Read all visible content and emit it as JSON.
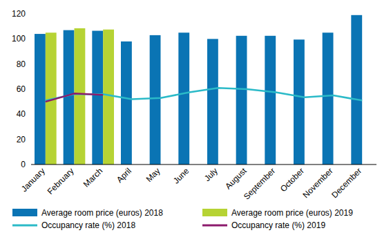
{
  "chart_data": {
    "type": "bar",
    "categories": [
      "January",
      "February",
      "March",
      "April",
      "May",
      "June",
      "July",
      "August",
      "September",
      "October",
      "November",
      "December"
    ],
    "series": [
      {
        "name": "Average room price (euros) 2018",
        "type": "bar",
        "color": "#0a74b4",
        "values": [
          104,
          107,
          106.5,
          98,
          103,
          105,
          100,
          102.5,
          102.5,
          99.5,
          105,
          119
        ]
      },
      {
        "name": "Average room price (euros) 2019",
        "type": "bar",
        "color": "#b6d334",
        "values": [
          105,
          108.5,
          107.5,
          null,
          null,
          null,
          null,
          null,
          null,
          null,
          null,
          null
        ]
      },
      {
        "name": "Occupancy rate (%) 2018",
        "type": "line",
        "color": "#2bbac8",
        "values": [
          51,
          56,
          56,
          52,
          53,
          57.5,
          61,
          60,
          57.5,
          53.5,
          55,
          51
        ]
      },
      {
        "name": "Occupancy rate (%) 2019",
        "type": "line",
        "color": "#8c1a6c",
        "values": [
          50,
          56.5,
          55.5,
          null,
          null,
          null,
          null,
          null,
          null,
          null,
          null,
          null
        ]
      }
    ],
    "ylim": [
      0,
      120
    ],
    "yticks": [
      0,
      20,
      40,
      60,
      80,
      100,
      120
    ],
    "grid": false,
    "legend": "bottom"
  }
}
